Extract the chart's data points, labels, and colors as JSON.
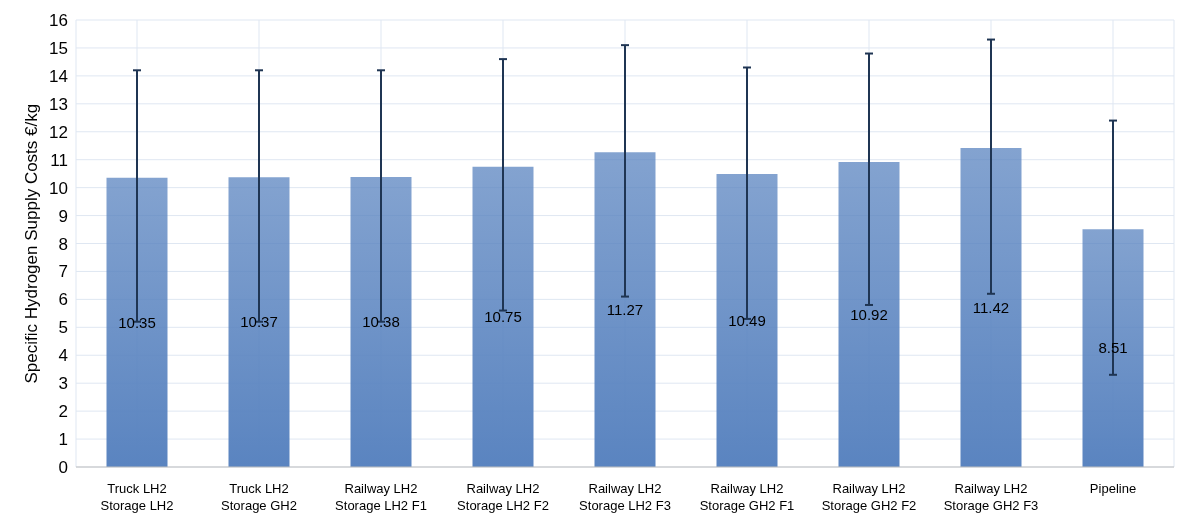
{
  "chart_data": {
    "type": "bar",
    "ylabel": "Specific Hydrogen Supply Costs €/kg",
    "categories": [
      "Truck LH2 Storage LH2",
      "Truck LH2 Storage GH2",
      "Railway LH2 Storage LH2 F1",
      "Railway LH2 Storage LH2 F2",
      "Railway LH2 Storage LH2 F3",
      "Railway LH2 Storage GH2 F1",
      "Railway LH2 Storage GH2 F2",
      "Railway LH2 Storage GH2 F3",
      "Pipeline"
    ],
    "values": [
      10.35,
      10.37,
      10.38,
      10.75,
      11.27,
      10.49,
      10.92,
      11.42,
      8.51
    ],
    "errors": [
      [
        5.2,
        14.2
      ],
      [
        5.2,
        14.2
      ],
      [
        5.2,
        14.2
      ],
      [
        5.6,
        14.6
      ],
      [
        6.1,
        15.1
      ],
      [
        5.3,
        14.3
      ],
      [
        5.8,
        14.8
      ],
      [
        6.2,
        15.3
      ],
      [
        3.3,
        12.4
      ]
    ],
    "color": "#5a84c0",
    "data_labels": true,
    "grid": true,
    "ylim": [
      0,
      16
    ],
    "yticks": [
      0,
      1,
      2,
      3,
      4,
      5,
      6,
      7,
      8,
      9,
      10,
      11,
      12,
      13,
      14,
      15,
      16
    ]
  }
}
